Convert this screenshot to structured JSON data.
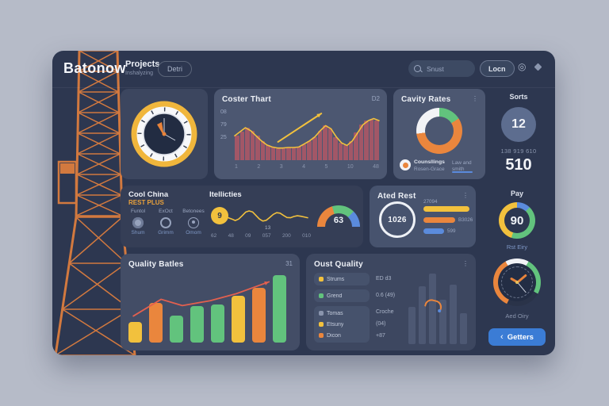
{
  "theme": {
    "page_bg": "#b6bbc8",
    "card_bg": "#2d3750",
    "panel_light": "#4c5771",
    "panel_dark": "#353e56",
    "accent_yellow": "#f2c13d",
    "accent_orange": "#ea863d",
    "accent_green": "#62c37d",
    "accent_blue": "#5b8bdc",
    "accent_red": "#e2604f",
    "tower_orange": "#d2793f"
  },
  "icons": {
    "gear": "◎",
    "menu": "⋮",
    "cta_chevron": "‹"
  },
  "header": {
    "logo": "Batonow",
    "nav_title": "Projects",
    "nav_subtitle": "Inshalyzing",
    "pill_button": "Detri",
    "search_placeholder": "Snust",
    "login_button": "Locn"
  },
  "panels": {
    "coster": {
      "title": "Coster Thart",
      "badge": "D2"
    },
    "candy": {
      "title": "Cavity Rates",
      "menu_icon": "⋮",
      "legend_name": "Counsllings",
      "legend_sub": "Rosen-Grace",
      "legend_right": "Law and smith"
    },
    "sorts": {
      "title": "Sorts",
      "circle_value": "12",
      "sub_value": "138 919 610",
      "big_value": "510"
    },
    "cool": {
      "title": "Cool China",
      "subtitle": "REST PLUS",
      "columns": [
        {
          "top": "Funtol",
          "bottom": "Shum"
        },
        {
          "top": "ExOct",
          "bottom": "Grimm"
        },
        {
          "top": "Betonees",
          "bottom": "Omom"
        }
      ]
    },
    "wave": {
      "title": "Itellicties",
      "start_value": "9",
      "annotation": "13"
    },
    "gauge": {
      "value": "63"
    },
    "ated": {
      "title": "Ated Rest",
      "menu_icon": "⋮",
      "circle_value": "1026"
    },
    "pay": {
      "title": "Pay",
      "value": "90",
      "subtitle": "Rst Eiry"
    },
    "quality": {
      "title": "Quality Batles",
      "badge": "31"
    },
    "oust": {
      "title": "Oust Quality",
      "menu_icon": "⋮",
      "rows": [
        {
          "icon_color": "#f2c13d",
          "label": "Strums",
          "value": "ED d3"
        },
        {
          "icon_color": "#62c37d",
          "label": "Grend",
          "value": "0.6 (49)"
        },
        {
          "icon_color": "#8a95ad",
          "label": "Tomas",
          "value": "Croche"
        },
        {
          "icon_color": "#f2c13d",
          "label": "Etsuny",
          "value": "(04)"
        },
        {
          "icon_color": "#ea863d",
          "label": "Dicon",
          "value": "+87"
        }
      ]
    },
    "clock": {
      "caption": "Aed Oiry",
      "ring_segments": [
        {
          "color": "#f2f3f6",
          "pct": 8
        },
        {
          "color": "#62c37d",
          "pct": 25
        },
        {
          "color": "#2a3349",
          "pct": 24
        },
        {
          "color": "#ea863d",
          "pct": 35
        },
        {
          "color": "#f2f3f6",
          "pct": 8
        }
      ]
    },
    "cta": {
      "label": "Getters",
      "icon": "‹"
    }
  },
  "chart_data": [
    {
      "id": "coster",
      "type": "bar+line",
      "title": "Coster Thart",
      "ylim": [
        0,
        100
      ],
      "bar_color": "#a25767",
      "line_color": "#f2c13d",
      "bar_values": [
        48,
        56,
        64,
        58,
        48,
        38,
        30,
        26,
        24,
        24,
        25,
        25,
        26,
        32,
        38,
        46,
        58,
        68,
        62,
        46,
        34,
        29,
        38,
        54,
        70,
        78,
        82,
        78
      ],
      "y_ticks": [
        "08",
        "79",
        "25"
      ],
      "x_ticks": [
        "1",
        "2",
        "3",
        "4",
        "5",
        "10",
        "48"
      ],
      "arrow": {
        "from": [
          30,
          64
        ],
        "to": [
          60,
          8
        ]
      }
    },
    {
      "id": "candy-donut",
      "type": "pie",
      "title": "Cavity Rates",
      "slices": [
        {
          "label": "segment-green",
          "value": 16,
          "color": "#62c37d"
        },
        {
          "label": "segment-orange",
          "value": 57,
          "color": "#ea863d"
        },
        {
          "label": "segment-white",
          "value": 27,
          "color": "#f2f3f6"
        }
      ]
    },
    {
      "id": "wave",
      "type": "line",
      "title": "Itellicties",
      "color": "#f2c13d",
      "start_value": "9",
      "values": [
        55,
        60,
        66,
        60,
        47,
        33,
        28,
        32,
        46,
        60,
        68,
        65,
        54,
        42,
        35,
        37,
        46,
        54,
        55,
        50,
        47,
        49,
        52,
        55
      ],
      "x": [
        "62",
        "48",
        "09",
        "057",
        "200",
        "010"
      ],
      "annotation": "13"
    },
    {
      "id": "gauge63",
      "type": "gauge",
      "value": 63,
      "segments": [
        {
          "color": "#ea863d",
          "pct": 20
        },
        {
          "color": "#62c37d",
          "pct": 17.5
        },
        {
          "color": "#5b8bdc",
          "pct": 12.5
        }
      ]
    },
    {
      "id": "ated-bars",
      "type": "bar",
      "orientation": "horizontal",
      "center_value": "1026",
      "bars": [
        {
          "color": "#f2c13d",
          "pct": 100,
          "label": "27094"
        },
        {
          "color": "#ea863d",
          "pct": 69,
          "label": "B3026"
        },
        {
          "color": "#5b8bdc",
          "pct": 45,
          "label": "599"
        }
      ]
    },
    {
      "id": "quality",
      "type": "bar",
      "title": "Quality Batles",
      "ylim": [
        0,
        100
      ],
      "values": [
        30,
        57,
        39,
        52,
        54,
        67,
        78,
        97
      ],
      "colors": [
        "#f2c13d",
        "#ea863d",
        "#62c37d",
        "#62c37d",
        "#62c37d",
        "#f2c13d",
        "#ea863d",
        "#62c37d"
      ],
      "trend_color": "#e2604f",
      "trend": [
        [
          3,
          62
        ],
        [
          20,
          38
        ],
        [
          33,
          47
        ],
        [
          50,
          40
        ],
        [
          66,
          30
        ],
        [
          86,
          13
        ]
      ]
    },
    {
      "id": "pay-ring",
      "type": "gauge",
      "value": 90,
      "segments": [
        {
          "color": "#5b8bdc",
          "pct": 12
        },
        {
          "color": "#62c37d",
          "pct": 43
        },
        {
          "color": "#f2c13d",
          "pct": 45
        }
      ]
    },
    {
      "id": "oust-bars",
      "type": "bar",
      "values": [
        50,
        78,
        95,
        60,
        80,
        42
      ],
      "color": "#5d6a86"
    }
  ]
}
